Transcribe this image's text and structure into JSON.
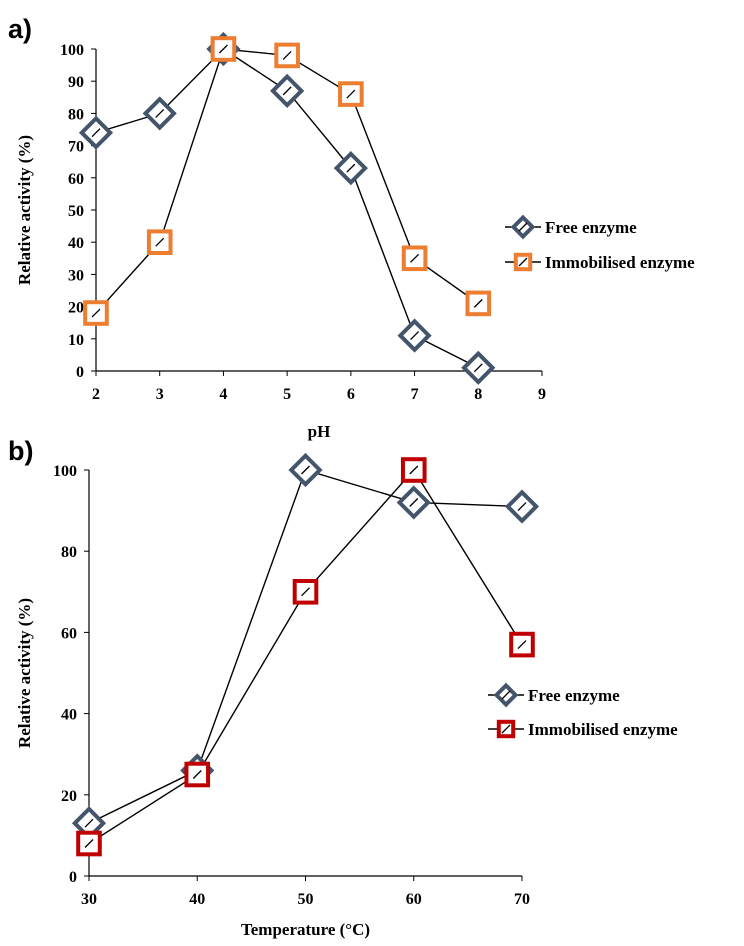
{
  "chart_data": [
    {
      "type": "line",
      "panel_label": "a)",
      "title": "",
      "xlabel": "pH",
      "ylabel": "Relative activity (%)",
      "xlim": [
        2,
        9
      ],
      "ylim": [
        0,
        100
      ],
      "x_ticks": [
        2,
        3,
        4,
        5,
        6,
        7,
        8,
        9
      ],
      "y_ticks": [
        0,
        10,
        20,
        30,
        40,
        50,
        60,
        70,
        80,
        90,
        100
      ],
      "grid": false,
      "legend_position": "right",
      "series": [
        {
          "name": "Free enzyme",
          "marker": "diamond",
          "color": "#44546A",
          "x": [
            2,
            3,
            4,
            5,
            6,
            7,
            8
          ],
          "y": [
            74,
            80,
            100,
            87,
            63,
            11,
            1
          ]
        },
        {
          "name": "Immobilised enzyme",
          "marker": "square",
          "color": "#ED7D31",
          "x": [
            2,
            3,
            4,
            5,
            6,
            7,
            8
          ],
          "y": [
            18,
            40,
            100,
            98,
            86,
            35,
            21
          ]
        }
      ]
    },
    {
      "type": "line",
      "panel_label": "b)",
      "title": "",
      "xlabel": "Temperature (°C)",
      "ylabel": "Relative activity (%)",
      "xlim": [
        30,
        70
      ],
      "ylim": [
        0,
        100
      ],
      "x_ticks": [
        30,
        40,
        50,
        60,
        70
      ],
      "y_ticks": [
        0,
        20,
        40,
        60,
        80,
        100
      ],
      "grid": false,
      "legend_position": "right",
      "series": [
        {
          "name": "Free enzyme",
          "marker": "diamond",
          "color": "#44546A",
          "x": [
            30,
            40,
            50,
            60,
            70
          ],
          "y": [
            13,
            26,
            100,
            92,
            91
          ]
        },
        {
          "name": "Immobilised enzyme",
          "marker": "square",
          "color": "#C00000",
          "x": [
            30,
            40,
            50,
            60,
            70
          ],
          "y": [
            8,
            25,
            70,
            100,
            57
          ]
        }
      ]
    }
  ]
}
